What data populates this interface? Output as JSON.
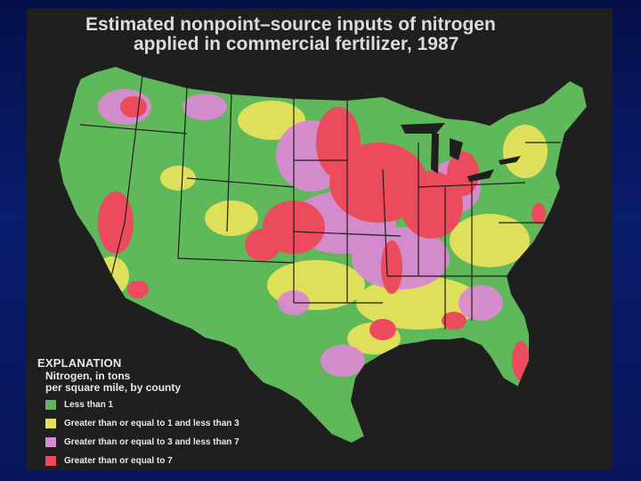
{
  "map": {
    "title_line_1": "Estimated nonpoint–source inputs of nitrogen",
    "title_line_2": "applied in commercial fertilizer, 1987",
    "legend": {
      "heading": "EXPLANATION",
      "subtitle_line_1": "Nitrogen, in tons",
      "subtitle_line_2": "per square mile, by county",
      "items": [
        {
          "label": "Less than 1",
          "color": "#5fb85a"
        },
        {
          "label": "Greater than or equal to 1 and less than 3",
          "color": "#e5e25c"
        },
        {
          "label": "Greater than or equal to 3 and less than 7",
          "color": "#d98ad2"
        },
        {
          "label": "Greater than or equal to 7",
          "color": "#ec4a5d"
        }
      ]
    }
  }
}
